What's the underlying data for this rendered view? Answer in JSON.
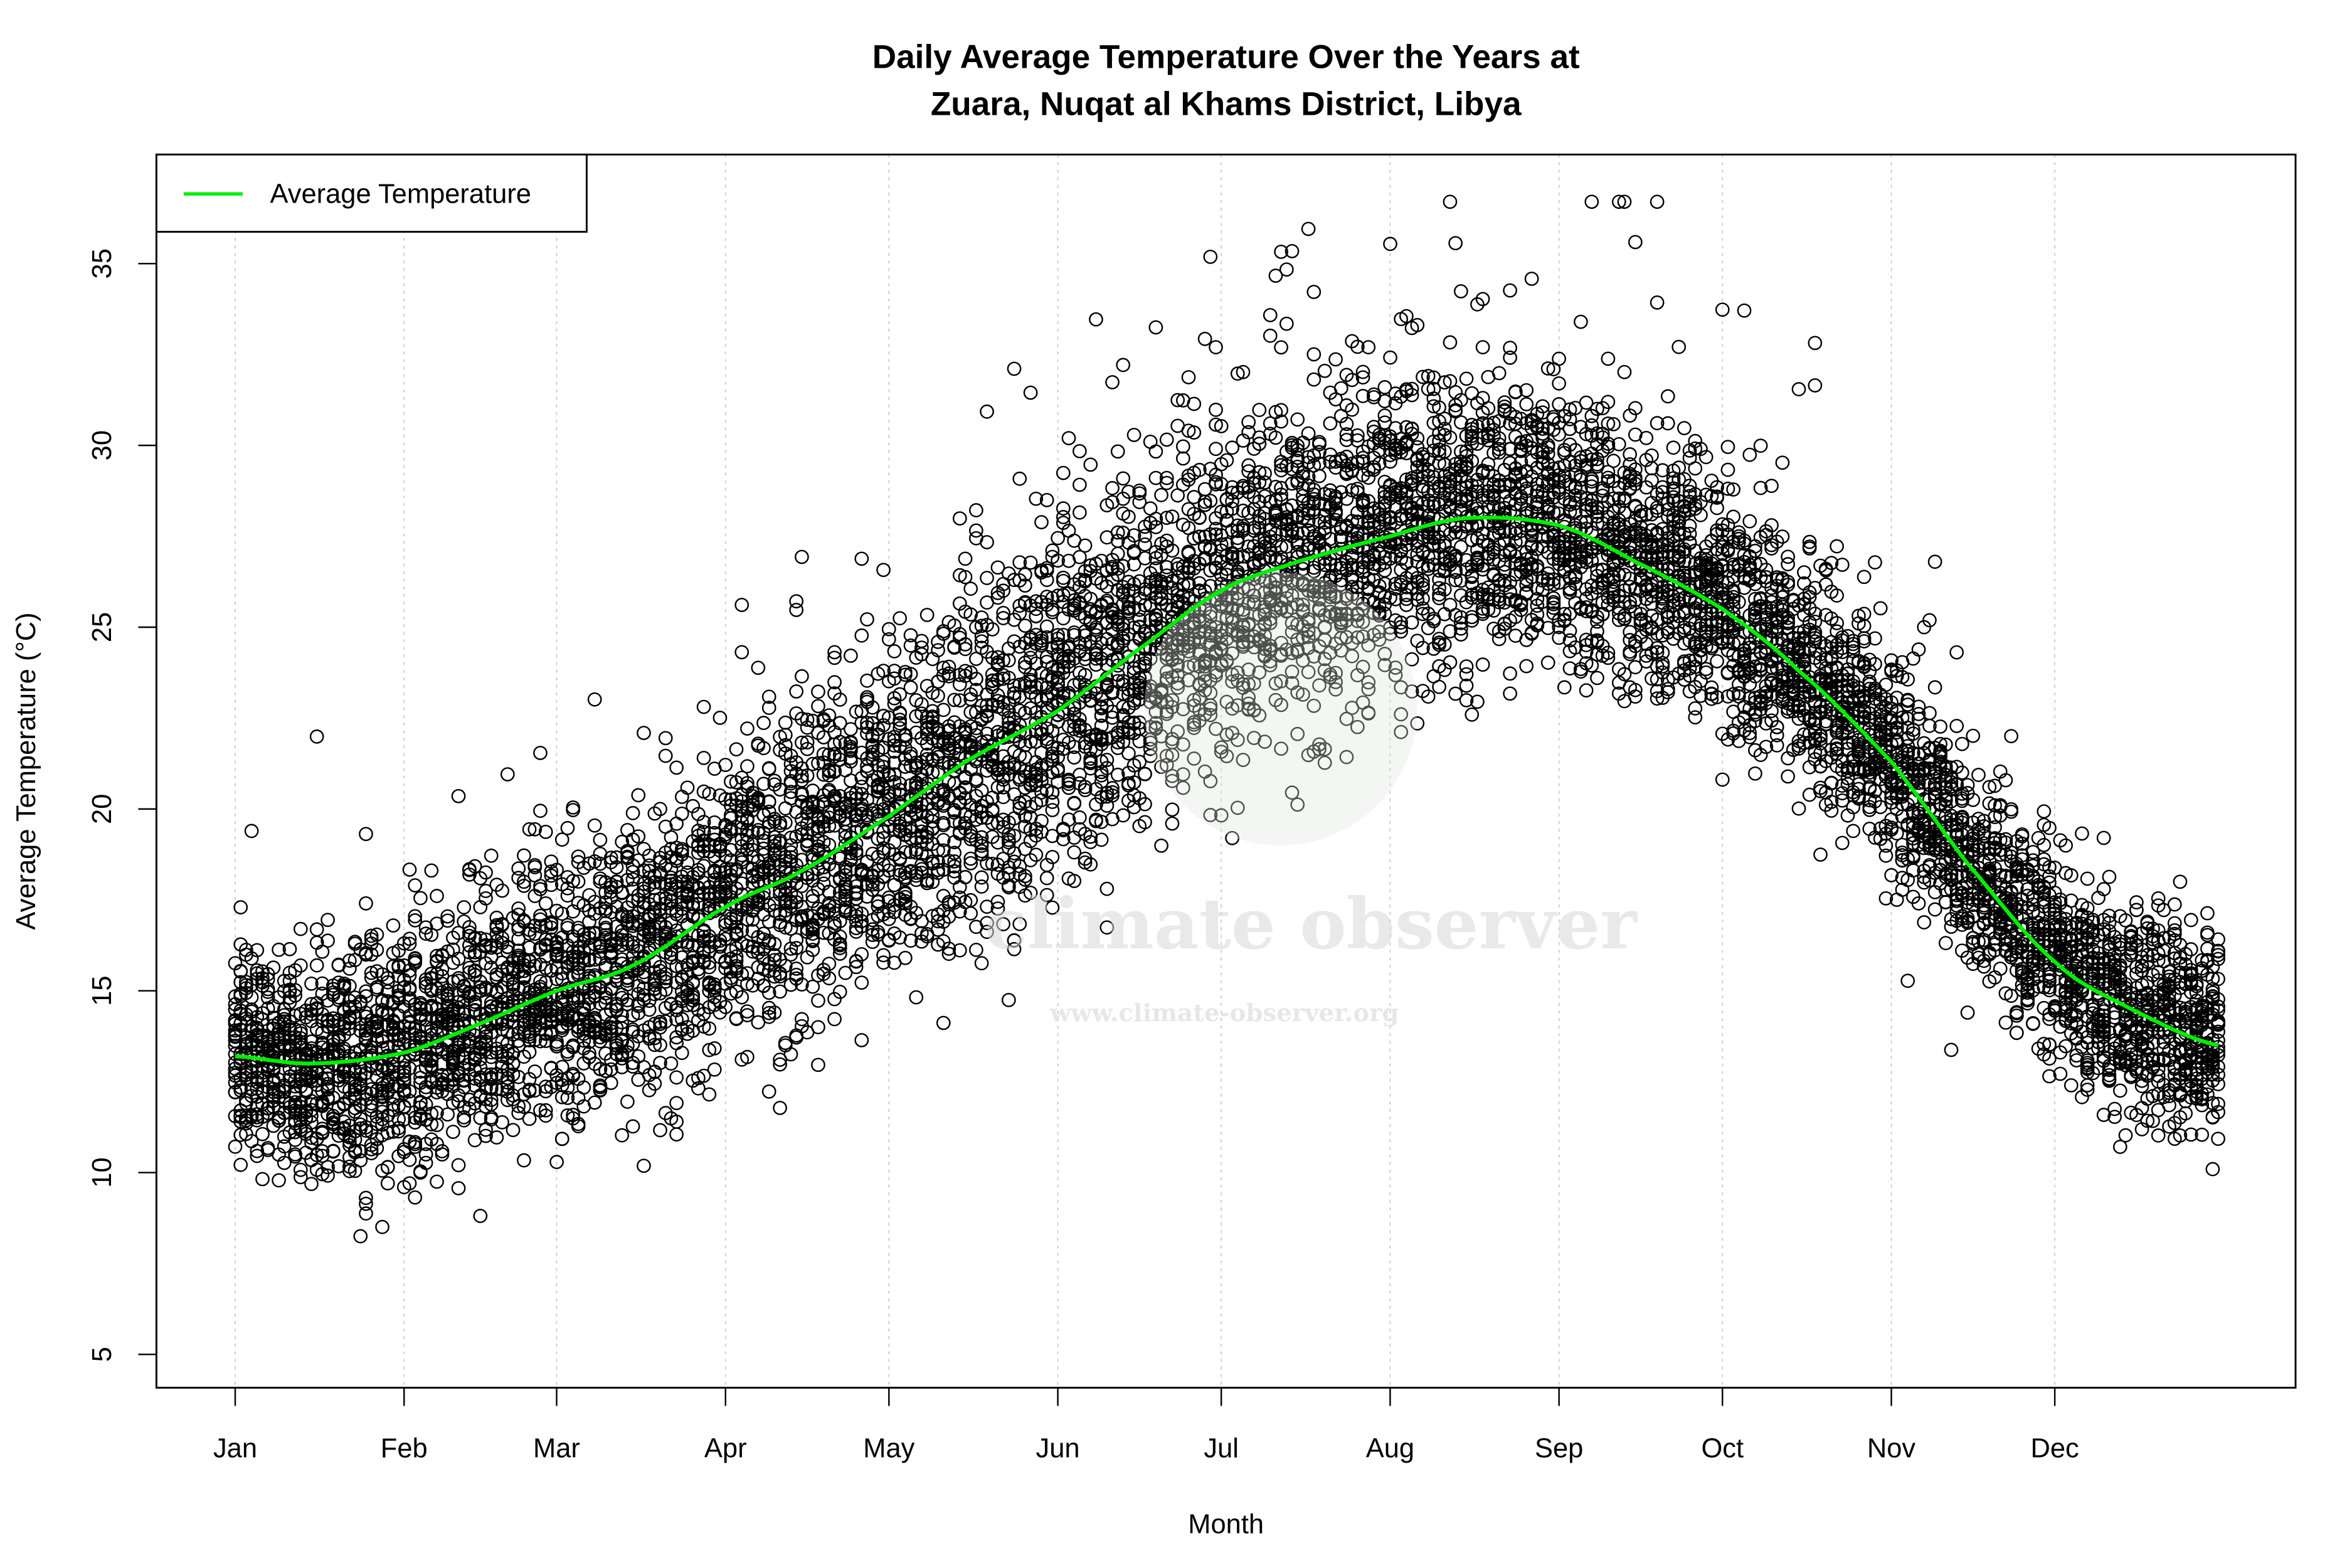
{
  "chart_data": {
    "type": "scatter",
    "title_lines": [
      "Daily Average Temperature Over the Years at",
      "Zuara, Nuqat al Khams District, Libya"
    ],
    "xlabel": "Month",
    "ylabel": "Average Temperature (°C)",
    "x_unit": "day of year",
    "xlim": [
      1,
      365
    ],
    "ylim": [
      4.1,
      37.9
    ],
    "x_ticks": [
      {
        "label": "Jan",
        "day": 1
      },
      {
        "label": "Feb",
        "day": 32
      },
      {
        "label": "Mar",
        "day": 60
      },
      {
        "label": "Apr",
        "day": 91
      },
      {
        "label": "May",
        "day": 121
      },
      {
        "label": "Jun",
        "day": 152
      },
      {
        "label": "Jul",
        "day": 182
      },
      {
        "label": "Aug",
        "day": 213
      },
      {
        "label": "Sep",
        "day": 244
      },
      {
        "label": "Oct",
        "day": 274
      },
      {
        "label": "Nov",
        "day": 305
      },
      {
        "label": "Dec",
        "day": 335
      }
    ],
    "y_ticks": [
      5,
      10,
      15,
      20,
      25,
      30,
      35
    ],
    "grid": "vertical dotted at month ticks",
    "legend": {
      "placement": "top-left",
      "entries": [
        {
          "name": "Average Temperature",
          "color": "#00ee00"
        }
      ]
    },
    "scatter_style": {
      "marker": "open circle",
      "color": "#000000"
    },
    "scatter_range_observed": {
      "min": 5.3,
      "max": 36.7
    },
    "average_line": {
      "name": "Average Temperature",
      "color": "#00ee00",
      "days": [
        1,
        15,
        32,
        46,
        60,
        74,
        91,
        105,
        121,
        135,
        152,
        166,
        182,
        196,
        213,
        227,
        244,
        258,
        274,
        288,
        305,
        319,
        335,
        349,
        365
      ],
      "values": [
        13.2,
        13.0,
        13.3,
        14.1,
        15.0,
        15.7,
        17.3,
        18.3,
        19.8,
        21.3,
        22.7,
        24.3,
        26.0,
        26.8,
        27.5,
        28.0,
        27.8,
        26.8,
        25.5,
        23.8,
        21.3,
        18.5,
        15.8,
        14.5,
        13.5
      ]
    }
  },
  "watermark": {
    "brand": "climate observer",
    "url": "www.climate-observer.org"
  }
}
